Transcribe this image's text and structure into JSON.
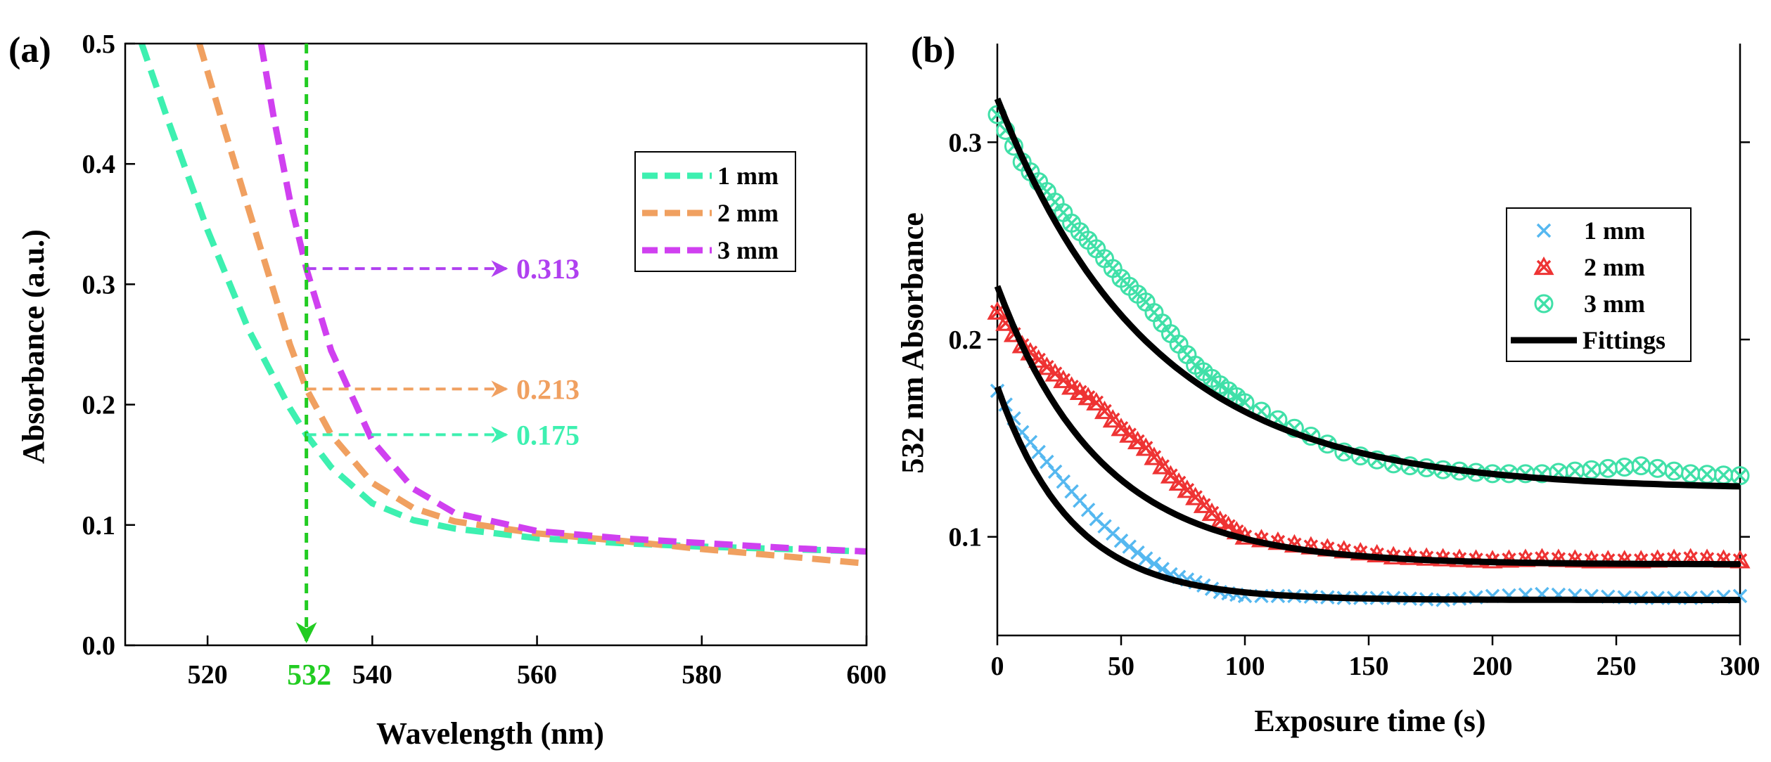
{
  "chart_data": [
    {
      "panel": "(a)",
      "type": "line",
      "xlabel": "Wavelength (nm)",
      "ylabel": "Absorbance (a.u.)",
      "xlim": [
        510,
        600
      ],
      "ylim": [
        0.0,
        0.5
      ],
      "xticks": [
        520,
        540,
        560,
        580,
        600
      ],
      "yticks": [
        0.0,
        0.1,
        0.2,
        0.3,
        0.4,
        0.5
      ],
      "ytick_labels": [
        "0.0",
        "0.1",
        "0.2",
        "0.3",
        "0.4",
        "0.5"
      ],
      "legend_position": "upper-right",
      "series": [
        {
          "name": "1 mm",
          "color": "#3DF0B0",
          "style": "dashed",
          "x": [
            512,
            515,
            520,
            525,
            530,
            532,
            535,
            540,
            545,
            550,
            560,
            570,
            580,
            590,
            600
          ],
          "y": [
            0.5,
            0.44,
            0.345,
            0.262,
            0.197,
            0.175,
            0.148,
            0.118,
            0.104,
            0.097,
            0.089,
            0.085,
            0.082,
            0.08,
            0.078
          ]
        },
        {
          "name": "2 mm",
          "color": "#F0A060",
          "style": "dashed",
          "x": [
            519,
            522,
            525,
            528,
            530,
            532,
            535,
            540,
            545,
            550,
            560,
            570,
            580,
            590,
            600
          ],
          "y": [
            0.5,
            0.43,
            0.362,
            0.295,
            0.25,
            0.213,
            0.175,
            0.135,
            0.114,
            0.103,
            0.093,
            0.087,
            0.08,
            0.074,
            0.068
          ]
        },
        {
          "name": "3 mm",
          "color": "#D040F0",
          "style": "dashed",
          "x": [
            526.5,
            528,
            530,
            532,
            535,
            540,
            545,
            550,
            560,
            570,
            580,
            590,
            600
          ],
          "y": [
            0.5,
            0.44,
            0.37,
            0.313,
            0.245,
            0.17,
            0.13,
            0.11,
            0.095,
            0.089,
            0.085,
            0.081,
            0.078
          ]
        }
      ],
      "marker_line": {
        "x": 532,
        "label": "532",
        "color": "#22CC22"
      },
      "annotations": [
        {
          "text": "0.313",
          "y": 0.313,
          "color": "#B040F0"
        },
        {
          "text": "0.213",
          "y": 0.213,
          "color": "#F0A060"
        },
        {
          "text": "0.175",
          "y": 0.175,
          "color": "#3DF0B0"
        }
      ]
    },
    {
      "panel": "(b)",
      "type": "scatter",
      "xlabel": "Exposure time (s)",
      "ylabel": "532 nm Absorbance",
      "xlim": [
        0,
        300
      ],
      "ylim": [
        0.05,
        0.35
      ],
      "xticks": [
        0,
        50,
        100,
        150,
        200,
        250,
        300
      ],
      "yticks": [
        0.1,
        0.2,
        0.3
      ],
      "legend_position": "right",
      "series": [
        {
          "name": "1 mm",
          "color": "#55B8F0",
          "marker": "x",
          "A": 0.108,
          "tau": 30,
          "C": 0.068,
          "x": [
            0,
            10,
            20,
            30,
            40,
            50,
            60,
            70,
            80,
            90,
            100,
            120,
            140,
            160,
            180,
            200,
            220,
            240,
            260,
            280,
            300
          ],
          "y": [
            0.174,
            0.153,
            0.138,
            0.123,
            0.109,
            0.098,
            0.089,
            0.081,
            0.077,
            0.072,
            0.07,
            0.07,
            0.069,
            0.069,
            0.068,
            0.07,
            0.071,
            0.07,
            0.069,
            0.069,
            0.07
          ]
        },
        {
          "name": "2 mm",
          "color": "#EE3333",
          "marker": "x-triangle",
          "A": 0.141,
          "tau": 42,
          "C": 0.086,
          "x": [
            0,
            10,
            20,
            30,
            40,
            50,
            60,
            70,
            80,
            90,
            100,
            120,
            140,
            160,
            180,
            200,
            220,
            240,
            260,
            280,
            300
          ],
          "y": [
            0.214,
            0.197,
            0.186,
            0.176,
            0.168,
            0.155,
            0.145,
            0.131,
            0.12,
            0.108,
            0.1,
            0.096,
            0.093,
            0.09,
            0.089,
            0.088,
            0.089,
            0.088,
            0.088,
            0.089,
            0.088
          ]
        },
        {
          "name": "3 mm",
          "color": "#40E0A8",
          "marker": "circle-x",
          "A": 0.198,
          "tau": 62,
          "C": 0.124,
          "x": [
            0,
            10,
            20,
            30,
            40,
            50,
            60,
            70,
            80,
            90,
            100,
            120,
            140,
            160,
            180,
            200,
            220,
            240,
            260,
            280,
            300
          ],
          "y": [
            0.314,
            0.29,
            0.275,
            0.259,
            0.246,
            0.231,
            0.219,
            0.203,
            0.187,
            0.177,
            0.168,
            0.155,
            0.143,
            0.137,
            0.134,
            0.132,
            0.132,
            0.134,
            0.136,
            0.132,
            0.131
          ]
        },
        {
          "name": "Fittings",
          "color": "#000000",
          "style": "solid-line"
        }
      ]
    }
  ]
}
